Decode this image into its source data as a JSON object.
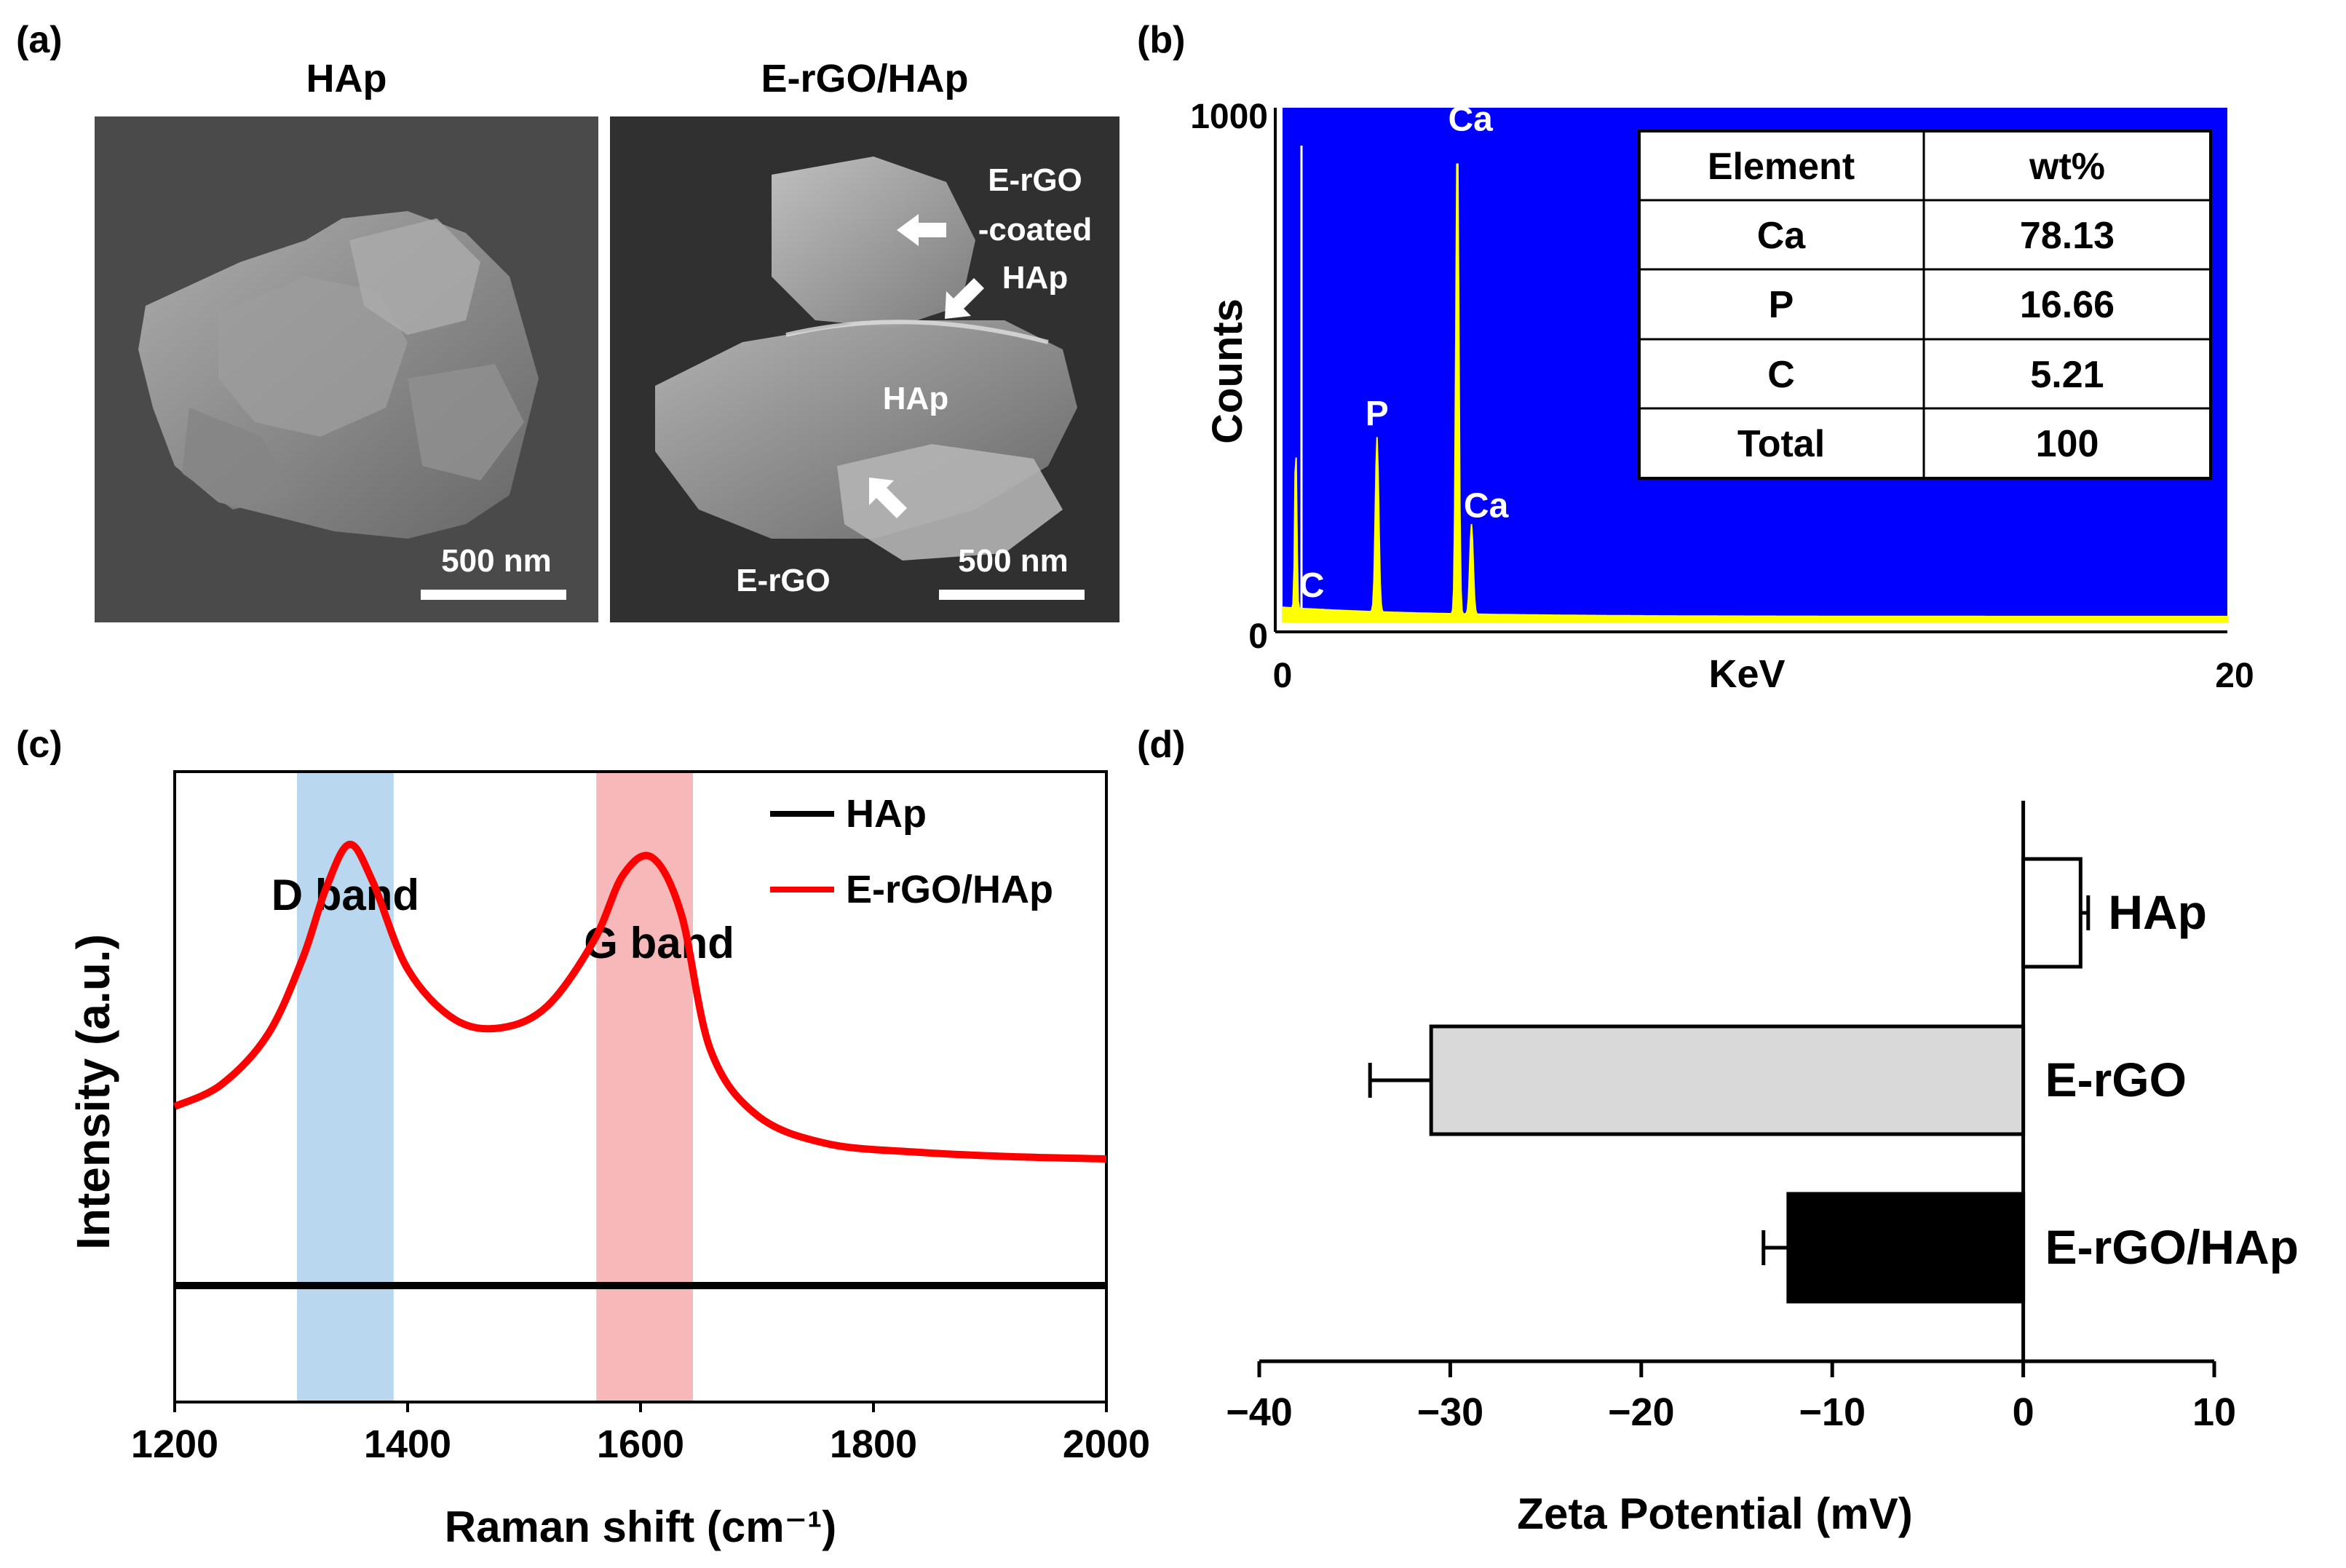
{
  "figure": {
    "panel_labels": [
      "(a)",
      "(b)",
      "(c)",
      "(d)"
    ]
  },
  "panel_a": {
    "left_title": "HAp",
    "right_title": "E-rGO/HAp",
    "left_scale_label": "500 nm",
    "right_scale_label": "500 nm",
    "annotations": [
      {
        "text": "E-rGO"
      },
      {
        "text": "-coated"
      },
      {
        "text": "HAp"
      },
      {
        "text": "HAp"
      },
      {
        "text": "E-rGO"
      }
    ]
  },
  "chart_data": [
    {
      "panel": "b",
      "type": "line",
      "xlabel": "KeV",
      "ylabel": "Counts",
      "xlim": [
        0,
        20
      ],
      "ylim": [
        0,
        1000
      ],
      "x_ticks": [
        "0",
        "20"
      ],
      "y_ticks": [
        "0",
        "1000"
      ],
      "background_color": "#0000ff",
      "series_color": "#ffff00",
      "peaks": [
        {
          "label": "C",
          "x": 0.28,
          "y": 320
        },
        {
          "label": "P",
          "x": 2.0,
          "y": 340
        },
        {
          "label": "Ca",
          "x": 3.7,
          "y": 930
        },
        {
          "label": "Ca",
          "x": 4.0,
          "y": 175
        }
      ],
      "table": {
        "headers": [
          "Element",
          "wt%"
        ],
        "rows": [
          [
            "Ca",
            "78.13"
          ],
          [
            "P",
            "16.66"
          ],
          [
            "C",
            "5.21"
          ],
          [
            "Total",
            "100"
          ]
        ]
      }
    },
    {
      "panel": "c",
      "type": "line",
      "xlabel": "Raman shift (cm⁻¹)",
      "ylabel": "Intensity (a.u.)",
      "xlim": [
        1200,
        2000
      ],
      "x_ticks": [
        "1200",
        "1400",
        "1600",
        "1800",
        "2000"
      ],
      "bands": [
        {
          "label": "D band",
          "from": 1305,
          "to": 1388,
          "color": "#b9d7ee"
        },
        {
          "label": "G band",
          "from": 1562,
          "to": 1645,
          "color": "#f6b8b8"
        }
      ],
      "series": [
        {
          "name": "HAp",
          "color": "#000000",
          "x": [
            1200,
            1300,
            1400,
            1500,
            1600,
            1700,
            1800,
            1900,
            2000
          ],
          "y": [
            0.1,
            0.1,
            0.1,
            0.1,
            0.1,
            0.1,
            0.1,
            0.1,
            0.1
          ]
        },
        {
          "name": "E-rGO/HAp",
          "color": "#ff0000",
          "x": [
            1200,
            1240,
            1280,
            1310,
            1330,
            1350,
            1370,
            1400,
            1440,
            1480,
            1520,
            1560,
            1585,
            1610,
            1635,
            1660,
            1700,
            1760,
            1840,
            1920,
            2000
          ],
          "y": [
            0.92,
            1.02,
            1.25,
            1.6,
            1.92,
            2.12,
            1.95,
            1.55,
            1.32,
            1.28,
            1.38,
            1.68,
            1.98,
            2.06,
            1.8,
            1.18,
            0.88,
            0.75,
            0.71,
            0.69,
            0.68
          ]
        }
      ]
    },
    {
      "panel": "d",
      "type": "bar",
      "orientation": "horizontal",
      "xlabel": "Zeta Potential (mV)",
      "xlim": [
        -40,
        10
      ],
      "x_ticks": [
        "−40",
        "−30",
        "−20",
        "−10",
        "0",
        "10"
      ],
      "categories": [
        "HAp",
        "E-rGO",
        "E-rGO/HAp"
      ],
      "values": [
        3.0,
        -31.0,
        -12.3
      ],
      "errors": [
        0.4,
        3.2,
        1.3
      ],
      "colors": [
        "#ffffff",
        "#d9d9d9",
        "#000000"
      ]
    }
  ]
}
